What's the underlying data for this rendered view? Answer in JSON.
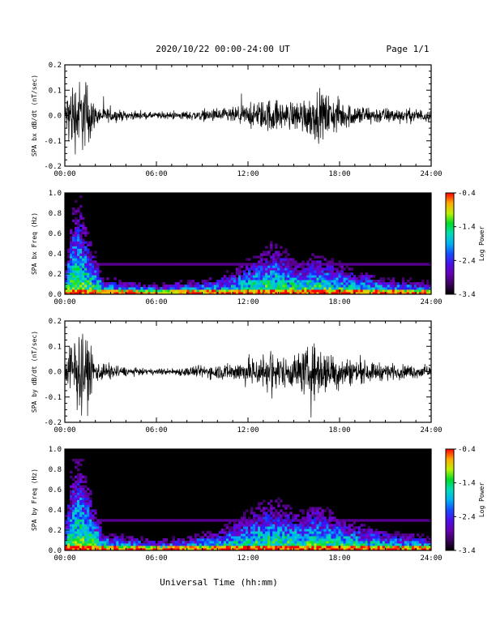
{
  "header": {
    "title": "2020/10/22  00:00-24:00 UT",
    "page": "Page 1/1"
  },
  "chart_data": [
    {
      "type": "line",
      "panel": "bx-derivative",
      "ylabel": "SPA bx dB/dt (nT/sec)",
      "ylim": [
        -0.2,
        0.2
      ],
      "yticks": [
        "-0.2",
        "-0.1",
        "0.0",
        "0.1",
        "0.2"
      ],
      "xlim": [
        0,
        24
      ],
      "xticks": [
        "00:00",
        "06:00",
        "12:00",
        "18:00",
        "24:00"
      ],
      "envelope": [
        {
          "t": 0.0,
          "a": 0.05
        },
        {
          "t": 0.3,
          "a": 0.2
        },
        {
          "t": 1.5,
          "a": 0.2
        },
        {
          "t": 2.0,
          "a": 0.05
        },
        {
          "t": 2.8,
          "a": 0.04
        },
        {
          "t": 4.0,
          "a": 0.025
        },
        {
          "t": 5.5,
          "a": 0.018
        },
        {
          "t": 7.0,
          "a": 0.02
        },
        {
          "t": 9.0,
          "a": 0.03
        },
        {
          "t": 11.0,
          "a": 0.045
        },
        {
          "t": 12.5,
          "a": 0.07
        },
        {
          "t": 13.5,
          "a": 0.1
        },
        {
          "t": 14.5,
          "a": 0.07
        },
        {
          "t": 15.5,
          "a": 0.1
        },
        {
          "t": 16.5,
          "a": 0.14
        },
        {
          "t": 17.2,
          "a": 0.12
        },
        {
          "t": 18.5,
          "a": 0.07
        },
        {
          "t": 20.0,
          "a": 0.05
        },
        {
          "t": 22.0,
          "a": 0.04
        },
        {
          "t": 24.0,
          "a": 0.035
        }
      ]
    },
    {
      "type": "heatmap",
      "panel": "bx-spectrogram",
      "ylabel": "SPA bx Freq (Hz)",
      "ylim": [
        0,
        1.0
      ],
      "yticks": [
        "0.0",
        "0.2",
        "0.4",
        "0.6",
        "0.8",
        "1.0"
      ],
      "xlim": [
        0,
        24
      ],
      "xticks": [
        "00:00",
        "06:00",
        "12:00",
        "18:00",
        "24:00"
      ],
      "colorbar": {
        "label": "Log Power",
        "ticks": [
          "-0.4",
          "-1.4",
          "-2.4",
          "-3.4"
        ],
        "range": [
          -3.4,
          -0.4
        ]
      },
      "activity": [
        {
          "t": 0.0,
          "f": 0.2
        },
        {
          "t": 0.5,
          "f": 0.8
        },
        {
          "t": 1.0,
          "f": 0.9
        },
        {
          "t": 1.5,
          "f": 0.6
        },
        {
          "t": 2.5,
          "f": 0.15
        },
        {
          "t": 6.0,
          "f": 0.08
        },
        {
          "t": 10.0,
          "f": 0.15
        },
        {
          "t": 12.5,
          "f": 0.35
        },
        {
          "t": 13.5,
          "f": 0.5
        },
        {
          "t": 15.5,
          "f": 0.3
        },
        {
          "t": 16.5,
          "f": 0.4
        },
        {
          "t": 18.5,
          "f": 0.25
        },
        {
          "t": 21.0,
          "f": 0.15
        },
        {
          "t": 24.0,
          "f": 0.1
        }
      ]
    },
    {
      "type": "line",
      "panel": "by-derivative",
      "ylabel": "SPA by dB/dt (nT/sec)",
      "ylim": [
        -0.2,
        0.2
      ],
      "yticks": [
        "-0.2",
        "-0.1",
        "0.0",
        "0.1",
        "0.2"
      ],
      "xlim": [
        0,
        24
      ],
      "xticks": [
        "00:00",
        "06:00",
        "12:00",
        "18:00",
        "24:00"
      ],
      "envelope": [
        {
          "t": 0.0,
          "a": 0.05
        },
        {
          "t": 0.3,
          "a": 0.2
        },
        {
          "t": 1.5,
          "a": 0.2
        },
        {
          "t": 2.0,
          "a": 0.06
        },
        {
          "t": 2.8,
          "a": 0.05
        },
        {
          "t": 4.0,
          "a": 0.025
        },
        {
          "t": 5.5,
          "a": 0.015
        },
        {
          "t": 7.0,
          "a": 0.02
        },
        {
          "t": 9.0,
          "a": 0.035
        },
        {
          "t": 11.0,
          "a": 0.05
        },
        {
          "t": 12.5,
          "a": 0.09
        },
        {
          "t": 13.5,
          "a": 0.12
        },
        {
          "t": 14.5,
          "a": 0.08
        },
        {
          "t": 15.5,
          "a": 0.12
        },
        {
          "t": 16.5,
          "a": 0.16
        },
        {
          "t": 17.2,
          "a": 0.12
        },
        {
          "t": 18.5,
          "a": 0.08
        },
        {
          "t": 20.0,
          "a": 0.055
        },
        {
          "t": 22.0,
          "a": 0.04
        },
        {
          "t": 24.0,
          "a": 0.035
        }
      ]
    },
    {
      "type": "heatmap",
      "panel": "by-spectrogram",
      "ylabel": "SPA by Freq (Hz)",
      "ylim": [
        0,
        1.0
      ],
      "yticks": [
        "0.0",
        "0.2",
        "0.4",
        "0.6",
        "0.8",
        "1.0"
      ],
      "xlim": [
        0,
        24
      ],
      "xticks": [
        "00:00",
        "06:00",
        "12:00",
        "18:00",
        "24:00"
      ],
      "colorbar": {
        "label": "Log Power",
        "ticks": [
          "-0.4",
          "-1.4",
          "-2.4",
          "-3.4"
        ],
        "range": [
          -3.4,
          -0.4
        ]
      },
      "activity": [
        {
          "t": 0.0,
          "f": 0.25
        },
        {
          "t": 0.5,
          "f": 0.85
        },
        {
          "t": 1.0,
          "f": 0.95
        },
        {
          "t": 1.5,
          "f": 0.65
        },
        {
          "t": 2.5,
          "f": 0.18
        },
        {
          "t": 6.0,
          "f": 0.08
        },
        {
          "t": 10.0,
          "f": 0.18
        },
        {
          "t": 12.5,
          "f": 0.4
        },
        {
          "t": 13.5,
          "f": 0.5
        },
        {
          "t": 15.5,
          "f": 0.35
        },
        {
          "t": 16.5,
          "f": 0.45
        },
        {
          "t": 18.5,
          "f": 0.28
        },
        {
          "t": 21.0,
          "f": 0.18
        },
        {
          "t": 24.0,
          "f": 0.12
        }
      ]
    }
  ],
  "xaxis_label": "Universal Time (hh:mm)"
}
